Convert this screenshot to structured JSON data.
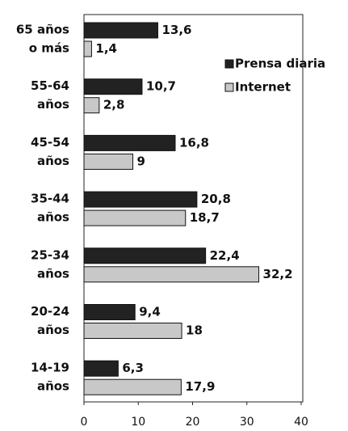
{
  "chart_data": {
    "type": "hbar",
    "categories": [
      [
        "65 años",
        "o más"
      ],
      [
        "55-64",
        "años"
      ],
      [
        "45-54",
        "años"
      ],
      [
        "35-44",
        "años"
      ],
      [
        "25-34",
        "años"
      ],
      [
        "20-24",
        "años"
      ],
      [
        "14-19",
        "años"
      ]
    ],
    "series": [
      {
        "name": "Prensa diaria",
        "color": "#222222",
        "values": [
          13.6,
          10.7,
          16.8,
          20.8,
          22.4,
          9.4,
          6.3
        ],
        "value_labels": [
          "13,6",
          "10,7",
          "16,8",
          "20,8",
          "22,4",
          "9,4",
          "6,3"
        ]
      },
      {
        "name": "Internet",
        "color": "#c8c8c8",
        "values": [
          1.4,
          2.8,
          9,
          18.7,
          32.2,
          18,
          17.9
        ],
        "value_labels": [
          "1,4",
          "2,8",
          "9",
          "18,7",
          "32,2",
          "18",
          "17,9"
        ]
      }
    ],
    "xlim": [
      0,
      40
    ],
    "xticks": [
      0,
      10,
      20,
      30,
      40
    ],
    "legend": "upper right"
  }
}
